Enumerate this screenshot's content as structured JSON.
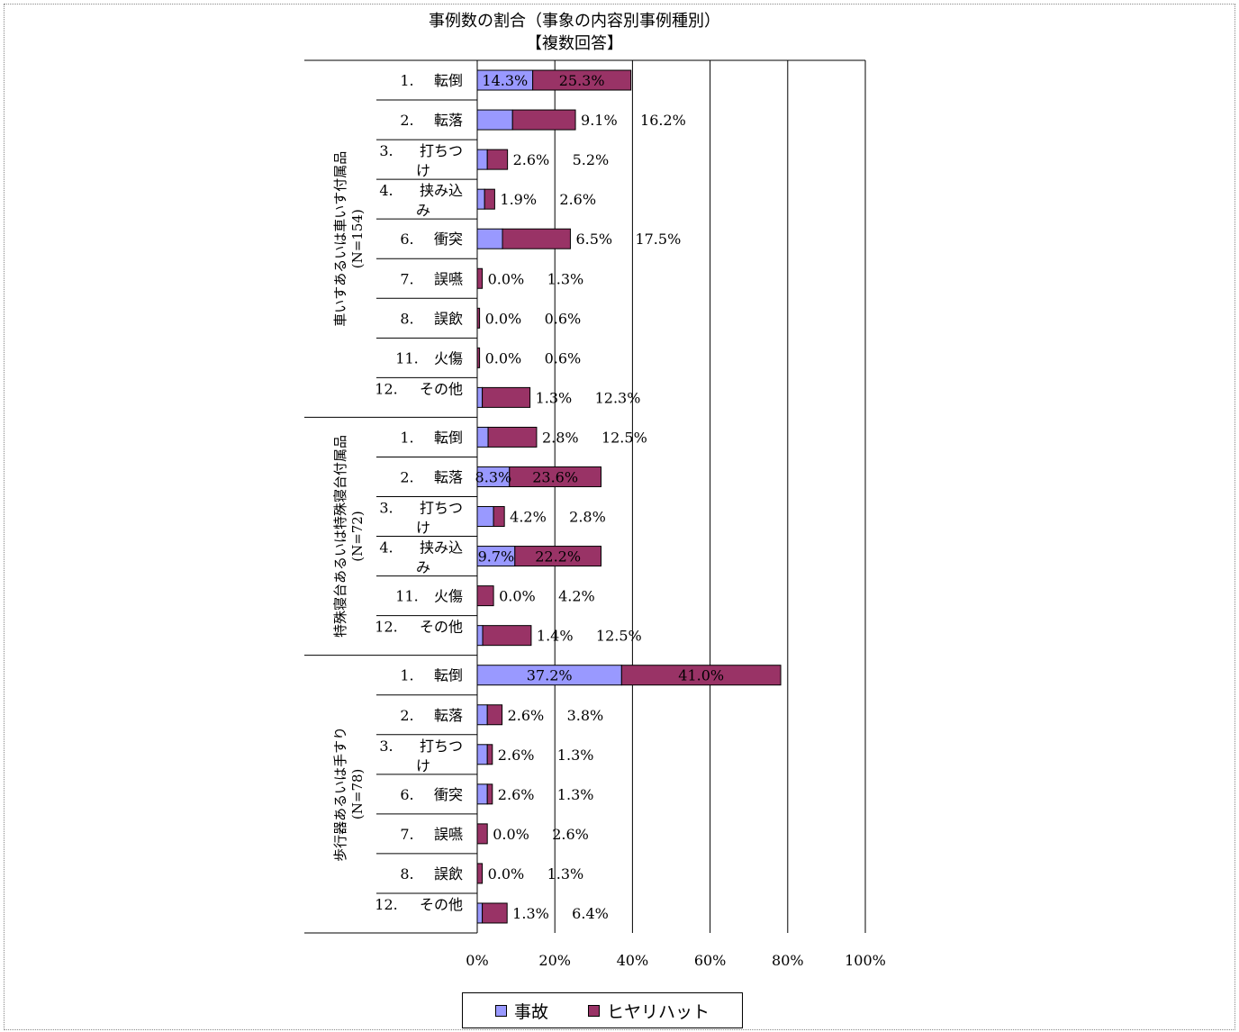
{
  "chart_data": {
    "type": "bar",
    "stacked": true,
    "orientation": "horizontal",
    "title": "事例数の割合（事象の内容別事例種別）",
    "subtitle": "【複数回答】",
    "xlim": [
      0,
      100
    ],
    "xticks": [
      "0%",
      "20%",
      "40%",
      "60%",
      "80%",
      "100%"
    ],
    "groups": [
      {
        "label": "車いすあるいは車いす付属品",
        "n_label": "(N=154)",
        "rows": [
          {
            "num": "1.",
            "name": "転倒",
            "values": [
              14.3,
              25.3
            ],
            "labels": [
              "14.3%",
              "25.3%"
            ]
          },
          {
            "num": "2.",
            "name": "転落",
            "values": [
              9.1,
              16.2
            ],
            "labels": [
              "9.1%",
              "16.2%"
            ]
          },
          {
            "num": "3.",
            "name": "打ちつけ",
            "values": [
              2.6,
              5.2
            ],
            "labels": [
              "2.6%",
              "5.2%"
            ]
          },
          {
            "num": "4.",
            "name": "挟み込み",
            "values": [
              1.9,
              2.6
            ],
            "labels": [
              "1.9%",
              "2.6%"
            ]
          },
          {
            "num": "6.",
            "name": "衝突",
            "values": [
              6.5,
              17.5
            ],
            "labels": [
              "6.5%",
              "17.5%"
            ]
          },
          {
            "num": "7.",
            "name": "誤嚥",
            "values": [
              0.0,
              1.3
            ],
            "labels": [
              "0.0%",
              "1.3%"
            ]
          },
          {
            "num": "8.",
            "name": "誤飲",
            "values": [
              0.0,
              0.6
            ],
            "labels": [
              "0.0%",
              "0.6%"
            ]
          },
          {
            "num": "11.",
            "name": "火傷",
            "values": [
              0.0,
              0.6
            ],
            "labels": [
              "0.0%",
              "0.6%"
            ]
          },
          {
            "num": "12.",
            "name": "その他",
            "values": [
              1.3,
              12.3
            ],
            "labels": [
              "1.3%",
              "12.3%"
            ]
          }
        ]
      },
      {
        "label": "特殊寝台あるいは特殊寝台付属品",
        "n_label": "(N=72)",
        "rows": [
          {
            "num": "1.",
            "name": "転倒",
            "values": [
              2.8,
              12.5
            ],
            "labels": [
              "2.8%",
              "12.5%"
            ]
          },
          {
            "num": "2.",
            "name": "転落",
            "values": [
              8.3,
              23.6
            ],
            "labels": [
              "8.3%",
              "23.6%"
            ]
          },
          {
            "num": "3.",
            "name": "打ちつけ",
            "values": [
              4.2,
              2.8
            ],
            "labels": [
              "4.2%",
              "2.8%"
            ]
          },
          {
            "num": "4.",
            "name": "挟み込み",
            "values": [
              9.7,
              22.2
            ],
            "labels": [
              "9.7%",
              "22.2%"
            ]
          },
          {
            "num": "11.",
            "name": "火傷",
            "values": [
              0.0,
              4.2
            ],
            "labels": [
              "0.0%",
              "4.2%"
            ]
          },
          {
            "num": "12.",
            "name": "その他",
            "values": [
              1.4,
              12.5
            ],
            "labels": [
              "1.4%",
              "12.5%"
            ]
          }
        ]
      },
      {
        "label": "歩行器あるいは手すり",
        "n_label": "(N=78)",
        "rows": [
          {
            "num": "1.",
            "name": "転倒",
            "values": [
              37.2,
              41.0
            ],
            "labels": [
              "37.2%",
              "41.0%"
            ]
          },
          {
            "num": "2.",
            "name": "転落",
            "values": [
              2.6,
              3.8
            ],
            "labels": [
              "2.6%",
              "3.8%"
            ]
          },
          {
            "num": "3.",
            "name": "打ちつけ",
            "values": [
              2.6,
              1.3
            ],
            "labels": [
              "2.6%",
              "1.3%"
            ]
          },
          {
            "num": "6.",
            "name": "衝突",
            "values": [
              2.6,
              1.3
            ],
            "labels": [
              "2.6%",
              "1.3%"
            ]
          },
          {
            "num": "7.",
            "name": "誤嚥",
            "values": [
              0.0,
              2.6
            ],
            "labels": [
              "0.0%",
              "2.6%"
            ]
          },
          {
            "num": "8.",
            "name": "誤飲",
            "values": [
              0.0,
              1.3
            ],
            "labels": [
              "0.0%",
              "1.3%"
            ]
          },
          {
            "num": "12.",
            "name": "その他",
            "values": [
              1.3,
              6.4
            ],
            "labels": [
              "1.3%",
              "6.4%"
            ]
          }
        ]
      }
    ],
    "series": [
      {
        "name": "事故",
        "color": "#9999ff"
      },
      {
        "name": "ヒヤリハット",
        "color": "#993366"
      }
    ],
    "legend_position": "bottom"
  }
}
